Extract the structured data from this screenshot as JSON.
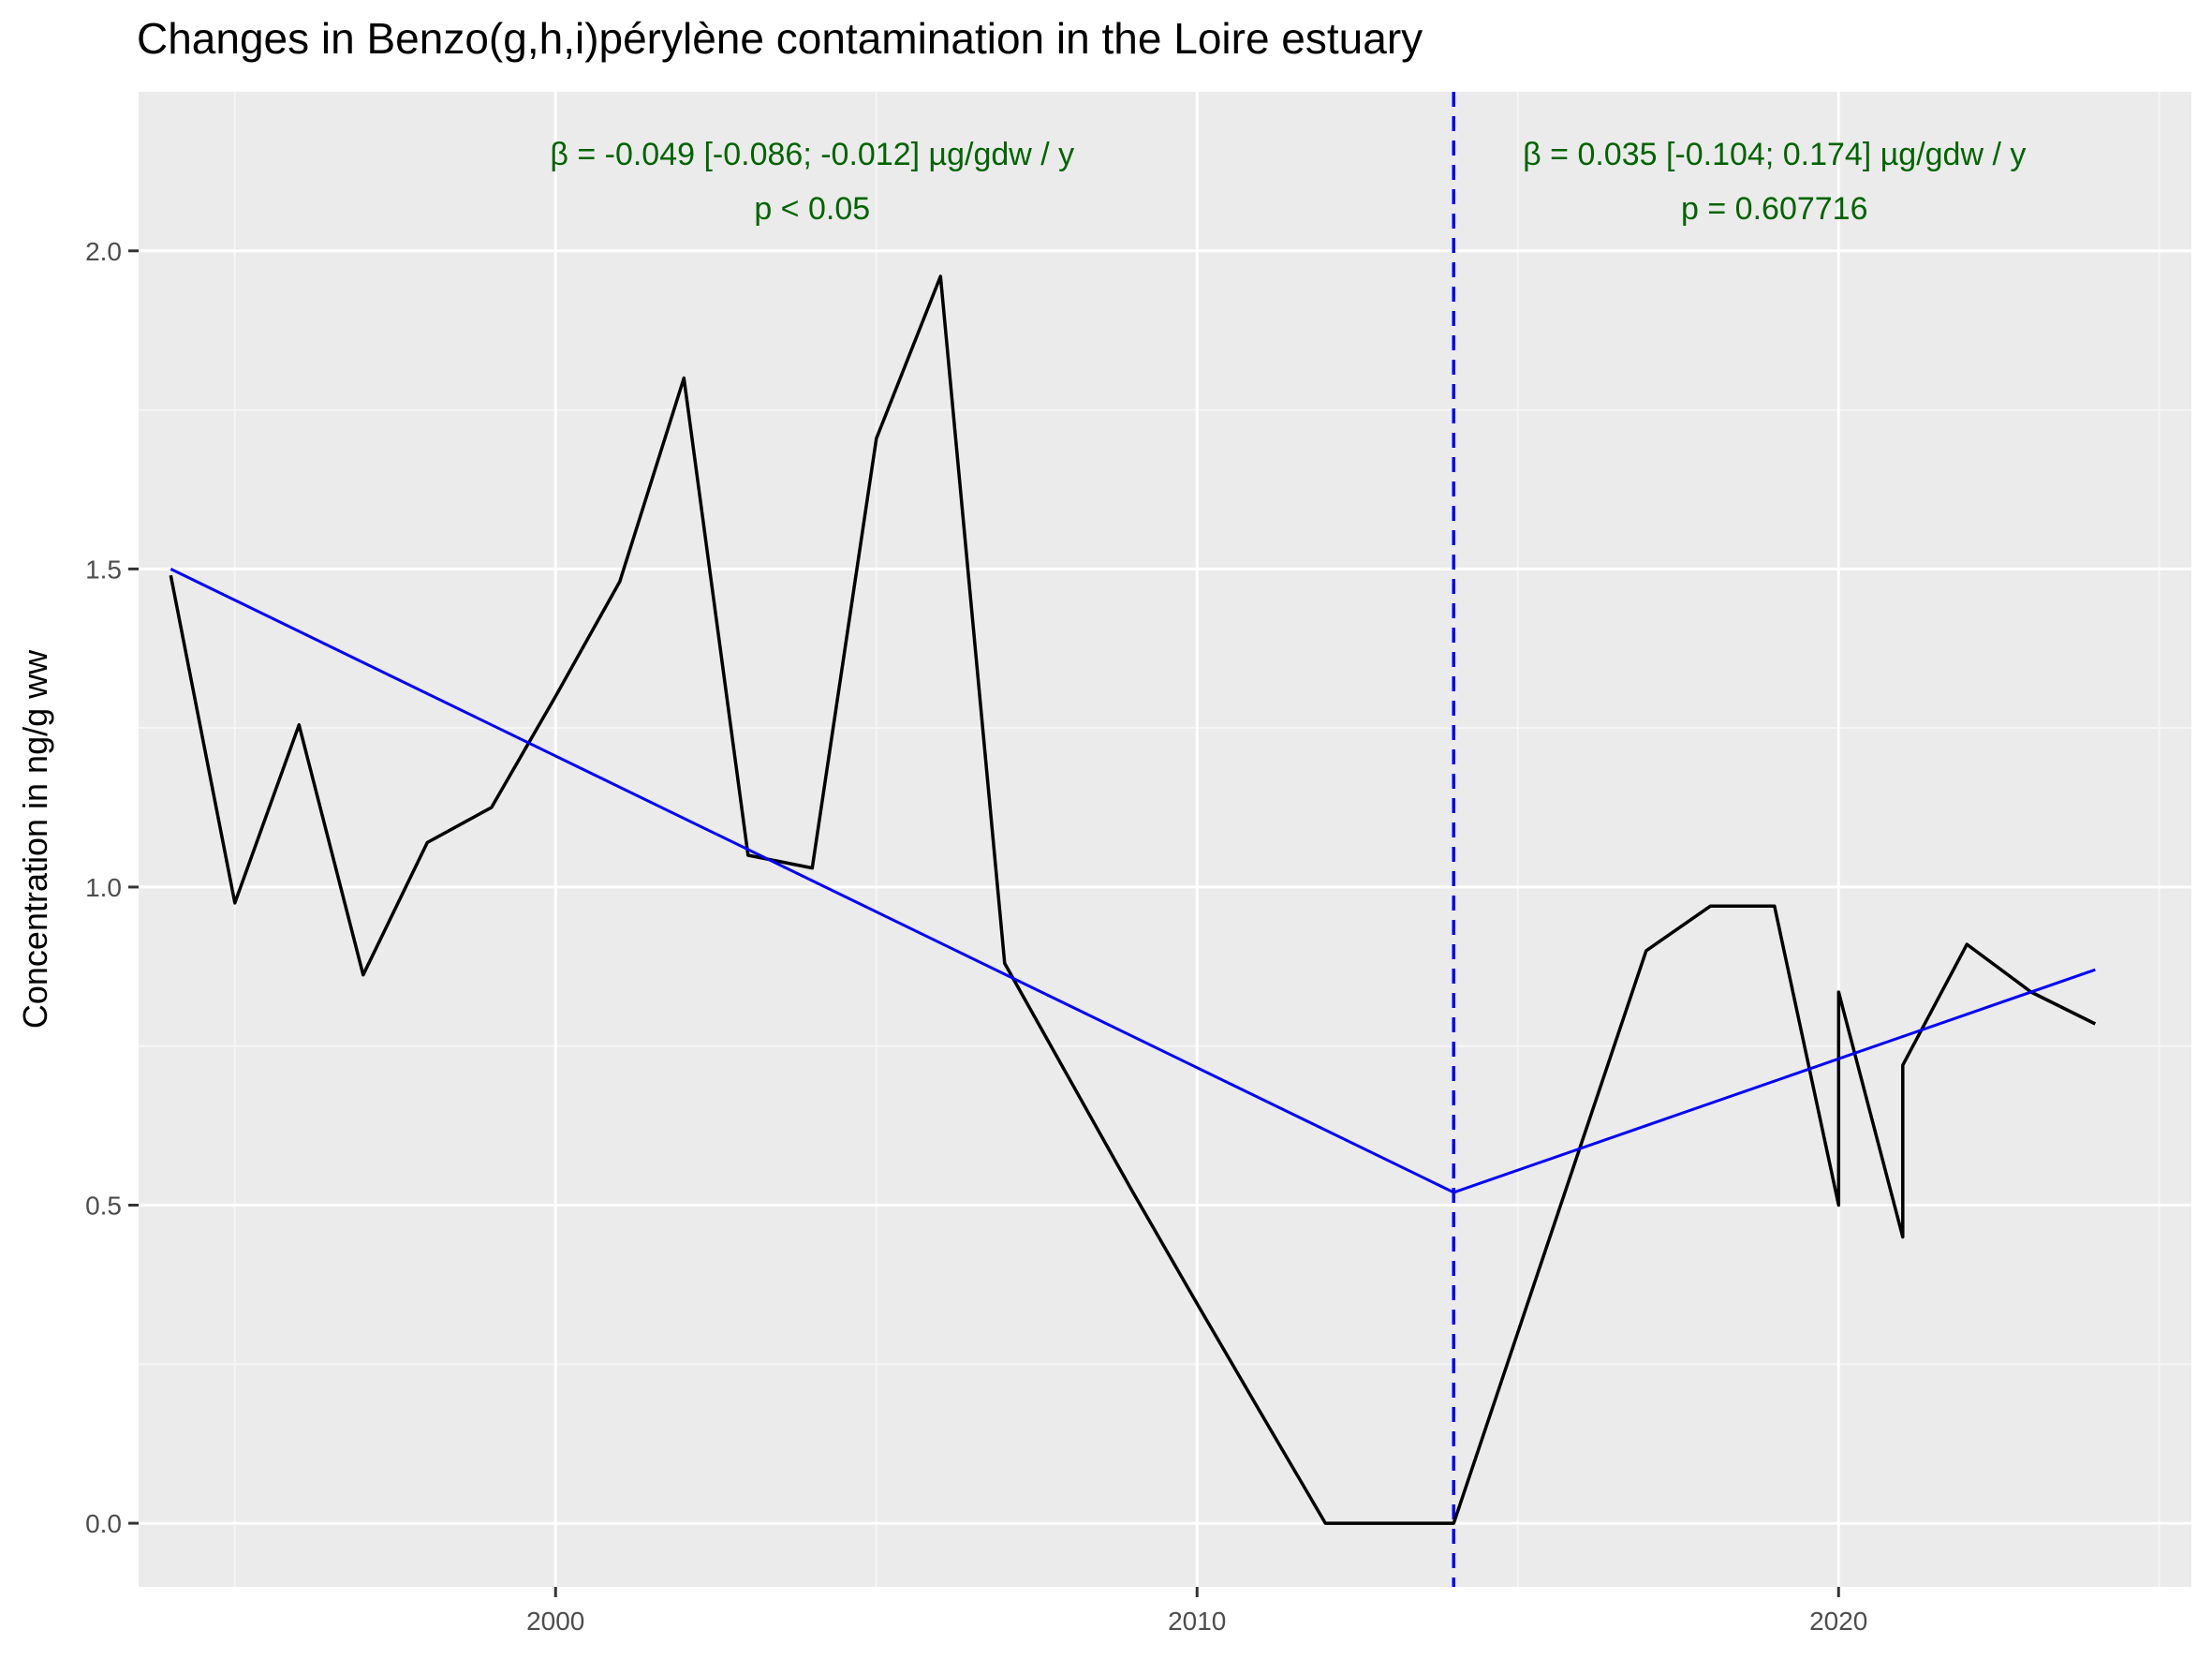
{
  "chart_data": {
    "type": "line",
    "title": "Changes in Benzo(g,h,i)pérylène contamination in the Loire estuary",
    "xlabel": "",
    "ylabel": "Concentration in ng/g ww",
    "xlim": [
      1993.5,
      2025.5
    ],
    "ylim": [
      -0.1,
      2.25
    ],
    "x_ticks": [
      2000,
      2010,
      2020
    ],
    "x_minor": [
      1995,
      2005,
      2015,
      2025
    ],
    "y_ticks": [
      0.0,
      0.5,
      1.0,
      1.5,
      2.0
    ],
    "y_tick_labels": [
      "0.0",
      "0.5",
      "1.0",
      "1.5",
      "2.0"
    ],
    "grid": true,
    "series": [
      {
        "color": "#000000",
        "x": [
          1994,
          1995,
          1996,
          1997,
          1998,
          1999,
          2000,
          2001,
          2002,
          2003,
          2004,
          2005,
          2006,
          2007,
          2008,
          2009,
          2010,
          2011,
          2012,
          2013,
          2014,
          2015,
          2016,
          2017,
          2018,
          2019,
          2020,
          2020,
          2021,
          2021,
          2022,
          2023,
          2024
        ],
        "y": [
          1.49,
          0.975,
          1.255,
          0.862,
          1.07,
          1.125,
          1.3,
          1.48,
          1.8,
          1.05,
          1.03,
          1.705,
          1.96,
          0.88,
          0.7,
          0.52,
          0.345,
          0.172,
          0.0,
          0.0,
          0.0,
          0.3,
          0.6,
          0.9,
          0.97,
          0.97,
          0.5,
          0.835,
          0.45,
          0.72,
          0.91,
          0.835,
          0.785
        ]
      },
      {
        "color": "#0000ff",
        "x": [
          1994,
          2014
        ],
        "y": [
          1.5,
          0.52
        ]
      },
      {
        "color": "#0000ff",
        "x": [
          2014,
          2024
        ],
        "y": [
          0.52,
          0.87
        ]
      }
    ],
    "breakpoint": {
      "x": 2014,
      "color": "#0000ff",
      "style": "dashed"
    },
    "annotations": [
      {
        "x": 2004,
        "y": 2.135,
        "text": "β = -0.049 [-0.086; -0.012] µg/gdw / y",
        "color": "#006400"
      },
      {
        "x": 2004,
        "y": 2.05,
        "text": "p < 0.05",
        "color": "#006400"
      },
      {
        "x": 2019,
        "y": 2.135,
        "text": "β = 0.035 [-0.104; 0.174] µg/gdw / y",
        "color": "#006400"
      },
      {
        "x": 2019,
        "y": 2.05,
        "text": "p = 0.607716",
        "color": "#006400"
      }
    ],
    "colors": {
      "panel": "#ebebeb",
      "grid_major": "#ffffff",
      "grid_minor": "#f5f5f5",
      "axis_text": "#4d4d4d"
    }
  }
}
